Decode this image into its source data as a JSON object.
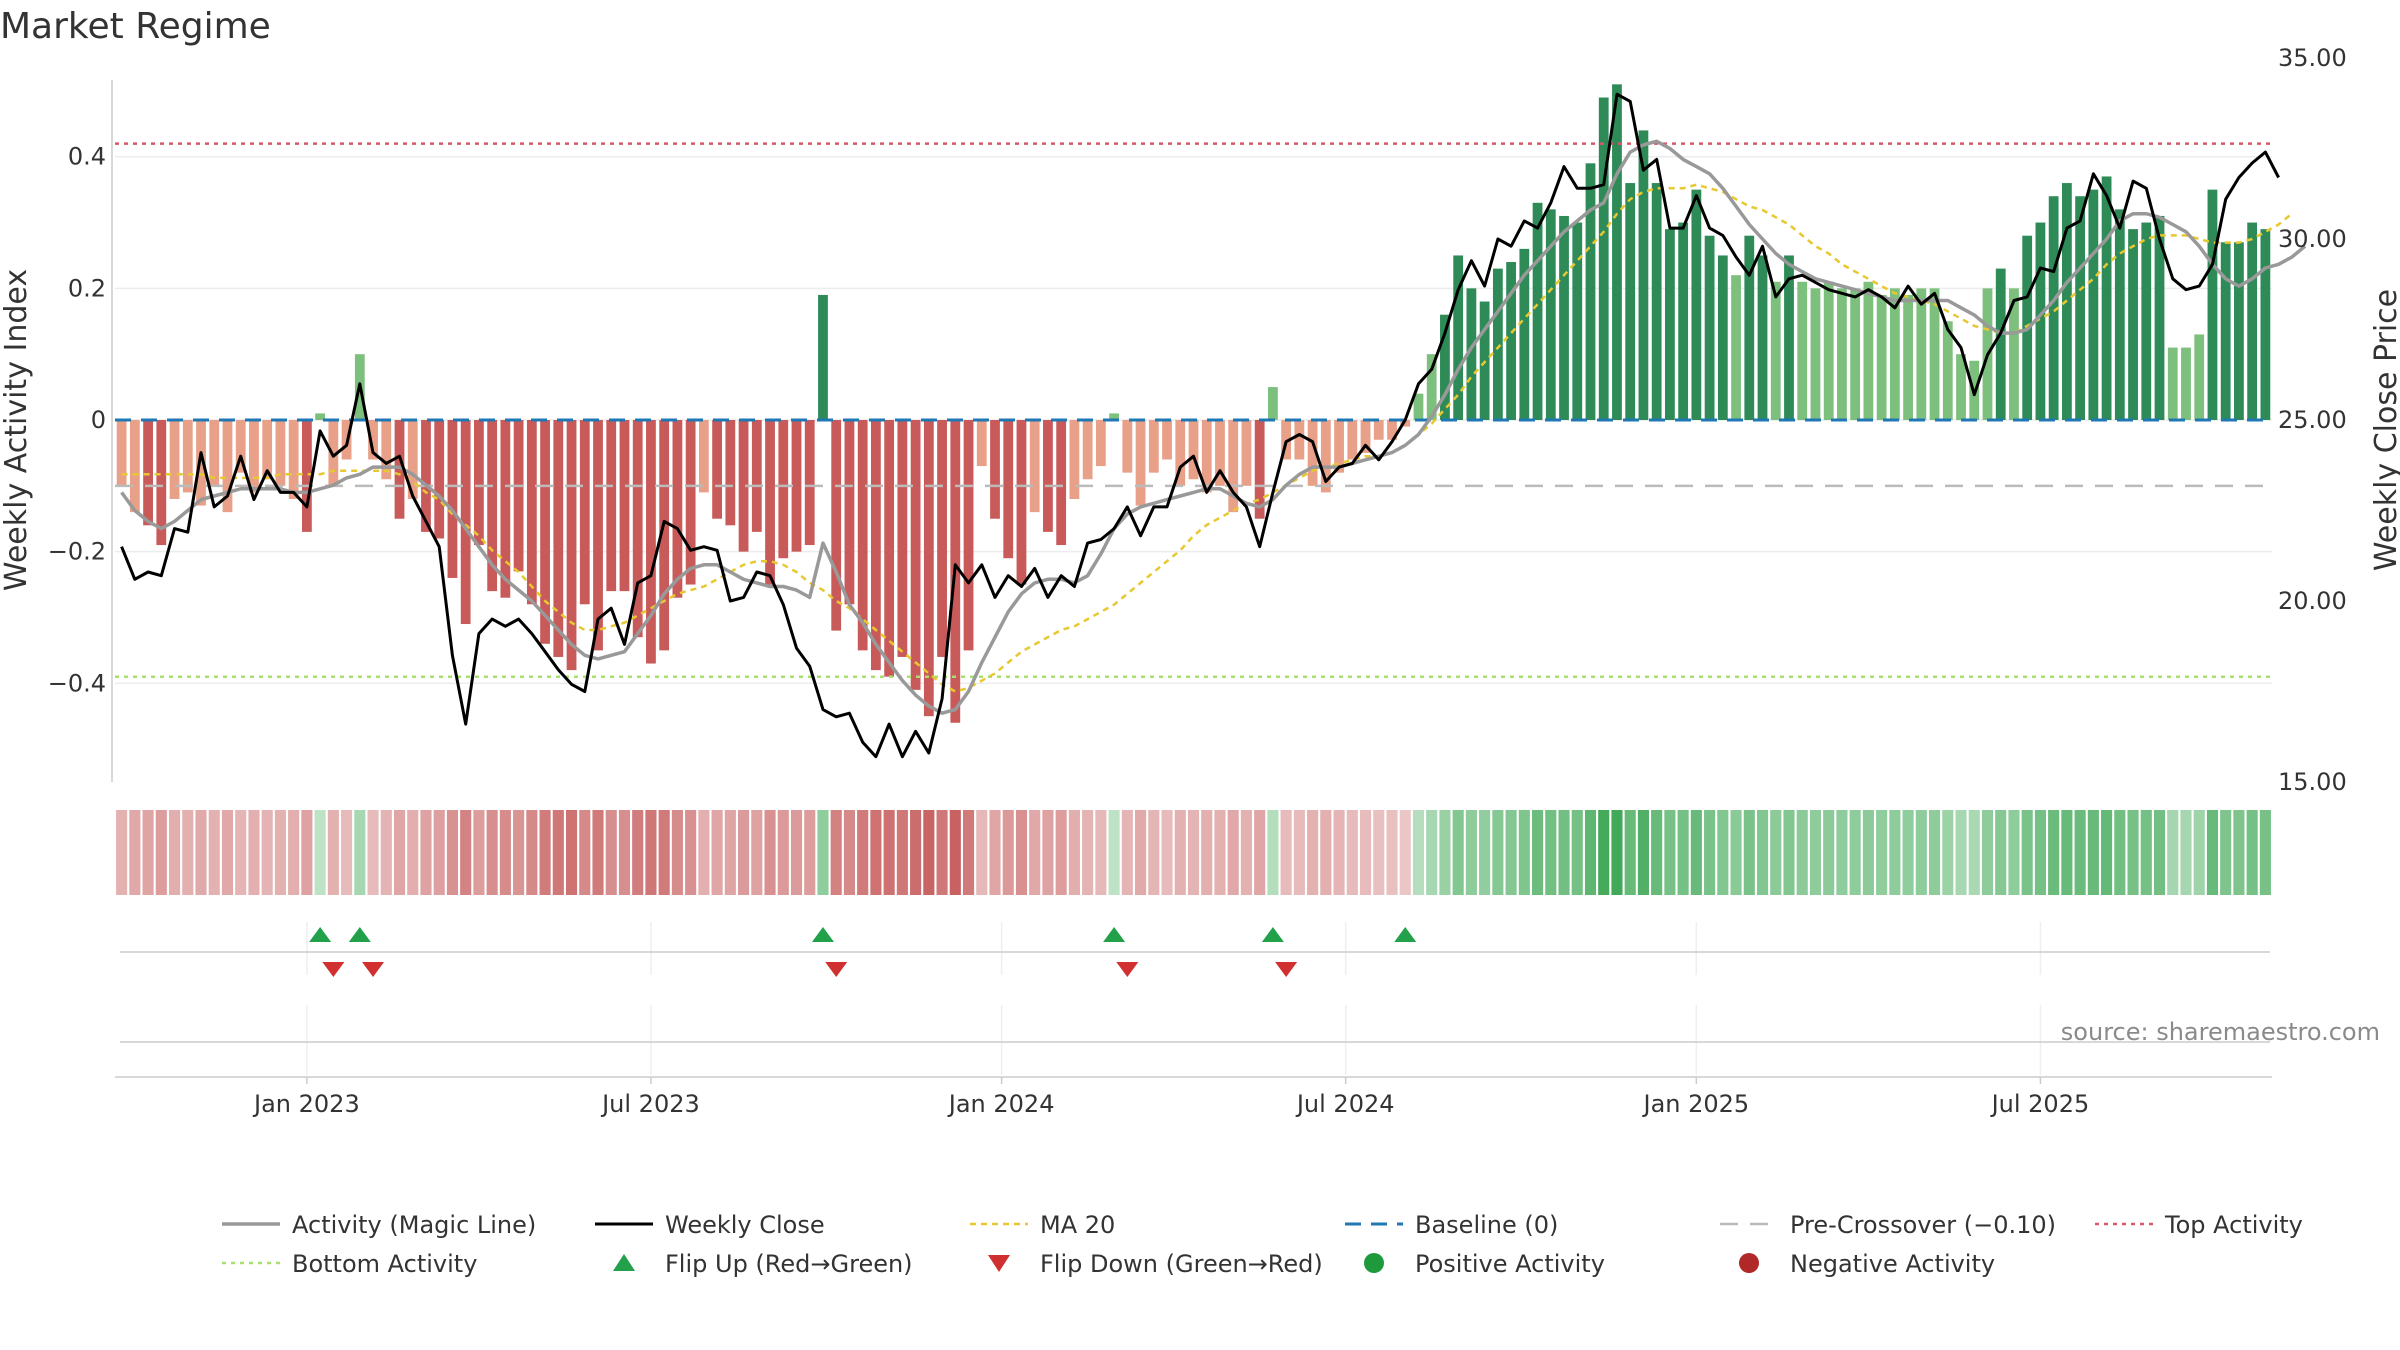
{
  "chart_data": {
    "type": "bar",
    "title": "Market Regime",
    "source": "source: sharemaestro.com",
    "ylabel_left": "Weekly Activity Index",
    "ylabel_right": "Weekly Close Price",
    "ylim_left": [
      -0.55,
      0.55
    ],
    "ylim_right": [
      15.0,
      35.0
    ],
    "yticks_left": [
      {
        "v": 0.4,
        "label": "0.4"
      },
      {
        "v": 0.2,
        "label": "0.2"
      },
      {
        "v": 0,
        "label": "0"
      },
      {
        "v": -0.2,
        "label": "−0.2"
      },
      {
        "v": -0.4,
        "label": "−0.4"
      }
    ],
    "yticks_right": [
      {
        "v": 35,
        "label": "35.00"
      },
      {
        "v": 30,
        "label": "30.00"
      },
      {
        "v": 25,
        "label": "25.00"
      },
      {
        "v": 20,
        "label": "20.00"
      },
      {
        "v": 15,
        "label": "15.00"
      }
    ],
    "xticks": [
      {
        "week": 14.5,
        "label": "Jan 2023"
      },
      {
        "week": 40.5,
        "label": "Jul 2023"
      },
      {
        "week": 67,
        "label": "Jan 2024"
      },
      {
        "week": 93,
        "label": "Jul 2024"
      },
      {
        "week": 119.5,
        "label": "Jan 2025"
      },
      {
        "week": 145.5,
        "label": "Jul 2025"
      }
    ],
    "lines": {
      "baseline": 0,
      "pre_crossover": -0.1,
      "top_activity": 0.42,
      "bottom_activity": -0.39
    },
    "activity_bars": [
      -0.1,
      -0.14,
      -0.16,
      -0.19,
      -0.12,
      -0.11,
      -0.13,
      -0.1,
      -0.14,
      -0.08,
      -0.11,
      -0.09,
      -0.1,
      -0.12,
      -0.17,
      0.01,
      -0.1,
      -0.06,
      0.1,
      -0.06,
      -0.09,
      -0.15,
      -0.12,
      -0.17,
      -0.18,
      -0.24,
      -0.31,
      -0.19,
      -0.26,
      -0.27,
      -0.23,
      -0.28,
      -0.34,
      -0.36,
      -0.38,
      -0.28,
      -0.35,
      -0.26,
      -0.26,
      -0.33,
      -0.37,
      -0.35,
      -0.27,
      -0.25,
      -0.11,
      -0.15,
      -0.16,
      -0.2,
      -0.17,
      -0.25,
      -0.21,
      -0.2,
      -0.19,
      0.19,
      -0.32,
      -0.28,
      -0.35,
      -0.38,
      -0.39,
      -0.36,
      -0.41,
      -0.45,
      -0.36,
      -0.46,
      -0.35,
      -0.07,
      -0.15,
      -0.21,
      -0.25,
      -0.14,
      -0.17,
      -0.19,
      -0.12,
      -0.09,
      -0.07,
      0.01,
      -0.08,
      -0.13,
      -0.08,
      -0.06,
      -0.1,
      -0.09,
      -0.11,
      -0.1,
      -0.14,
      -0.1,
      -0.15,
      0.05,
      -0.06,
      -0.06,
      -0.1,
      -0.11,
      -0.08,
      -0.06,
      -0.05,
      -0.03,
      -0.03,
      -0.01,
      0.04,
      0.1,
      0.16,
      0.25,
      0.2,
      0.18,
      0.23,
      0.24,
      0.26,
      0.33,
      0.32,
      0.31,
      0.3,
      0.39,
      0.49,
      0.51,
      0.36,
      0.44,
      0.36,
      0.29,
      0.3,
      0.35,
      0.28,
      0.25,
      0.22,
      0.28,
      0.25,
      0.21,
      0.25,
      0.21,
      0.2,
      0.21,
      0.2,
      0.2,
      0.21,
      0.19,
      0.2,
      0.19,
      0.2,
      0.2,
      0.15,
      0.1,
      0.09,
      0.2,
      0.23,
      0.2,
      0.28,
      0.3,
      0.34,
      0.36,
      0.34,
      0.35,
      0.37,
      0.32,
      0.29,
      0.3,
      0.31,
      0.11,
      0.11,
      0.13,
      0.35,
      0.27,
      0.27,
      0.3,
      0.29
    ],
    "weekly_close": [
      21.5,
      20.6,
      20.8,
      20.7,
      22.0,
      21.9,
      24.1,
      22.6,
      22.9,
      24.0,
      22.8,
      23.6,
      23.0,
      23.0,
      22.6,
      24.7,
      24.0,
      24.3,
      26.0,
      24.1,
      23.8,
      24.0,
      22.9,
      22.2,
      21.5,
      18.5,
      16.6,
      19.1,
      19.5,
      19.3,
      19.5,
      19.1,
      18.6,
      18.1,
      17.7,
      17.5,
      19.5,
      19.8,
      18.8,
      20.5,
      20.7,
      22.2,
      22.0,
      21.4,
      21.5,
      21.4,
      20.0,
      20.1,
      20.8,
      20.7,
      19.9,
      18.7,
      18.2,
      17.0,
      16.8,
      16.9,
      16.1,
      15.7,
      16.6,
      15.7,
      16.4,
      15.8,
      17.3,
      21.0,
      20.5,
      21.0,
      20.1,
      20.7,
      20.4,
      20.9,
      20.1,
      20.7,
      20.4,
      21.6,
      21.7,
      22.0,
      22.6,
      21.8,
      22.6,
      22.6,
      23.7,
      24.0,
      23.0,
      23.6,
      23.0,
      22.6,
      21.5,
      23.0,
      24.4,
      24.6,
      24.4,
      23.3,
      23.7,
      23.8,
      24.3,
      23.9,
      24.4,
      25.0,
      26.0,
      26.4,
      27.4,
      28.6,
      29.4,
      28.7,
      30.0,
      29.8,
      30.5,
      30.3,
      31.0,
      32.0,
      31.4,
      31.4,
      31.5,
      34.0,
      33.8,
      31.9,
      32.2,
      30.3,
      30.3,
      31.2,
      30.3,
      30.1,
      29.5,
      29.0,
      29.8,
      28.4,
      28.9,
      29.0,
      28.8,
      28.6,
      28.5,
      28.4,
      28.6,
      28.4,
      28.1,
      28.7,
      28.2,
      28.5,
      27.5,
      27.0,
      25.7,
      26.8,
      27.4,
      28.3,
      28.4,
      29.2,
      29.1,
      30.3,
      30.5,
      31.8,
      31.2,
      30.3,
      31.6,
      31.4,
      30.0,
      28.9,
      28.6,
      28.7,
      29.3,
      31.1,
      31.7,
      32.1,
      32.4,
      31.7
    ],
    "magic_line": [
      23.0,
      22.5,
      22.2,
      22.0,
      22.2,
      22.5,
      22.8,
      22.9,
      23.0,
      23.1,
      23.1,
      23.1,
      23.1,
      23.0,
      23.0,
      23.1,
      23.2,
      23.4,
      23.5,
      23.7,
      23.7,
      23.7,
      23.5,
      23.2,
      22.9,
      22.5,
      22.0,
      21.5,
      21.0,
      20.6,
      20.3,
      20.0,
      19.6,
      19.2,
      18.8,
      18.5,
      18.4,
      18.5,
      18.6,
      19.1,
      19.6,
      20.2,
      20.6,
      20.9,
      21.0,
      21.0,
      20.8,
      20.6,
      20.5,
      20.4,
      20.4,
      20.3,
      20.1,
      21.6,
      20.8,
      19.9,
      19.4,
      18.8,
      18.3,
      17.8,
      17.4,
      17.1,
      16.9,
      17.0,
      17.5,
      18.3,
      19.0,
      19.7,
      20.2,
      20.5,
      20.6,
      20.6,
      20.5,
      20.7,
      21.3,
      22.0,
      22.4,
      22.6,
      22.7,
      22.8,
      22.9,
      23.0,
      23.1,
      23.1,
      22.9,
      22.7,
      22.6,
      22.8,
      23.2,
      23.5,
      23.7,
      23.7,
      23.7,
      23.8,
      23.9,
      24.0,
      24.1,
      24.3,
      24.6,
      25.1,
      25.7,
      26.4,
      27.0,
      27.5,
      28.0,
      28.5,
      29.0,
      29.4,
      29.8,
      30.2,
      30.5,
      30.8,
      31.0,
      31.8,
      32.4,
      32.6,
      32.7,
      32.5,
      32.2,
      32.0,
      31.8,
      31.4,
      30.9,
      30.4,
      30.0,
      29.6,
      29.3,
      29.1,
      28.9,
      28.8,
      28.7,
      28.6,
      28.5,
      28.4,
      28.3,
      28.3,
      28.3,
      28.3,
      28.3,
      28.1,
      27.9,
      27.6,
      27.4,
      27.4,
      27.5,
      27.9,
      28.3,
      28.8,
      29.2,
      29.6,
      30.0,
      30.5,
      30.7,
      30.7,
      30.6,
      30.4,
      30.2,
      29.8,
      29.3,
      28.9,
      28.7,
      28.9,
      29.2,
      29.3,
      29.5,
      29.8
    ],
    "ma20": [
      23.5,
      23.5,
      23.5,
      23.5,
      23.5,
      23.5,
      23.5,
      23.4,
      23.4,
      23.4,
      23.4,
      23.4,
      23.5,
      23.5,
      23.5,
      23.5,
      23.6,
      23.6,
      23.6,
      23.6,
      23.6,
      23.5,
      23.3,
      23.0,
      22.8,
      22.4,
      22.1,
      21.8,
      21.4,
      21.1,
      20.8,
      20.4,
      20.0,
      19.7,
      19.4,
      19.2,
      19.2,
      19.3,
      19.4,
      19.6,
      19.8,
      20.0,
      20.2,
      20.3,
      20.4,
      20.6,
      20.8,
      21.0,
      21.1,
      21.1,
      21.0,
      20.8,
      20.5,
      20.3,
      20.0,
      19.8,
      19.5,
      19.2,
      18.9,
      18.6,
      18.3,
      18.0,
      17.7,
      17.5,
      17.6,
      17.8,
      18.0,
      18.3,
      18.6,
      18.8,
      19.0,
      19.2,
      19.3,
      19.5,
      19.7,
      19.9,
      20.2,
      20.5,
      20.8,
      21.1,
      21.4,
      21.8,
      22.1,
      22.3,
      22.5,
      22.7,
      22.8,
      23.0,
      23.2,
      23.4,
      23.6,
      23.7,
      23.8,
      23.9,
      24.0,
      24.0,
      24.1,
      24.3,
      24.6,
      24.9,
      25.3,
      25.7,
      26.2,
      26.6,
      27.0,
      27.4,
      27.8,
      28.2,
      28.6,
      29.0,
      29.4,
      29.8,
      30.2,
      30.7,
      31.1,
      31.3,
      31.4,
      31.4,
      31.4,
      31.5,
      31.4,
      31.3,
      31.1,
      30.9,
      30.8,
      30.6,
      30.4,
      30.1,
      29.8,
      29.6,
      29.3,
      29.1,
      28.9,
      28.7,
      28.5,
      28.4,
      28.3,
      28.2,
      28.0,
      27.8,
      27.6,
      27.5,
      27.4,
      27.4,
      27.6,
      27.8,
      28.0,
      28.3,
      28.6,
      28.9,
      29.3,
      29.6,
      29.8,
      30.0,
      30.1,
      30.1,
      30.1,
      30.0,
      29.9,
      29.9,
      29.9,
      30.0,
      30.2,
      30.4,
      30.7
    ],
    "regime_strip": [
      -0.1,
      -0.14,
      -0.16,
      -0.19,
      -0.12,
      -0.11,
      -0.13,
      -0.1,
      -0.14,
      -0.08,
      -0.11,
      -0.09,
      -0.1,
      -0.12,
      -0.17,
      0.01,
      -0.1,
      -0.06,
      0.1,
      -0.06,
      -0.09,
      -0.15,
      -0.12,
      -0.17,
      -0.18,
      -0.24,
      -0.31,
      -0.19,
      -0.26,
      -0.27,
      -0.23,
      -0.28,
      -0.34,
      -0.36,
      -0.38,
      -0.28,
      -0.35,
      -0.26,
      -0.26,
      -0.33,
      -0.37,
      -0.35,
      -0.27,
      -0.25,
      -0.11,
      -0.15,
      -0.16,
      -0.2,
      -0.17,
      -0.25,
      -0.21,
      -0.2,
      -0.19,
      0.19,
      -0.32,
      -0.28,
      -0.35,
      -0.38,
      -0.39,
      -0.36,
      -0.41,
      -0.45,
      -0.36,
      -0.46,
      -0.35,
      -0.07,
      -0.15,
      -0.21,
      -0.25,
      -0.14,
      -0.17,
      -0.19,
      -0.12,
      -0.09,
      -0.07,
      0.01,
      -0.08,
      -0.13,
      -0.08,
      -0.06,
      -0.1,
      -0.09,
      -0.11,
      -0.1,
      -0.14,
      -0.1,
      -0.15,
      0.05,
      -0.06,
      -0.06,
      -0.1,
      -0.11,
      -0.08,
      -0.06,
      -0.05,
      -0.03,
      -0.03,
      -0.01,
      0.04,
      0.1,
      0.16,
      0.25,
      0.2,
      0.18,
      0.23,
      0.24,
      0.26,
      0.33,
      0.32,
      0.31,
      0.3,
      0.39,
      0.49,
      0.51,
      0.36,
      0.44,
      0.36,
      0.29,
      0.3,
      0.35,
      0.28,
      0.25,
      0.22,
      0.28,
      0.25,
      0.21,
      0.25,
      0.21,
      0.2,
      0.21,
      0.2,
      0.2,
      0.21,
      0.19,
      0.2,
      0.19,
      0.2,
      0.2,
      0.15,
      0.1,
      0.09,
      0.2,
      0.23,
      0.2,
      0.28,
      0.3,
      0.34,
      0.36,
      0.34,
      0.35,
      0.37,
      0.32,
      0.29,
      0.3,
      0.31,
      0.11,
      0.11,
      0.13,
      0.35,
      0.27,
      0.27,
      0.3,
      0.29
    ],
    "flips_up_weeks": [
      15,
      18,
      53,
      75,
      87,
      97
    ],
    "flips_down_weeks": [
      16,
      19,
      54,
      76,
      88
    ],
    "colors": {
      "pos_dark": "#2e8b57",
      "pos_light": "#7dbf7d",
      "neg_dark": "#c85a5a",
      "neg_light": "#e8a088",
      "close": "#000000",
      "magic": "#999999",
      "ma20": "#e8c830",
      "baseline": "#1f77b4",
      "precross": "#bbbbbb",
      "top": "#d45a6a",
      "bottom": "#a8e070",
      "flip_up": "#22a04a",
      "flip_down": "#d03030"
    },
    "legend": [
      {
        "key": "magic",
        "label": "Activity (Magic Line)"
      },
      {
        "key": "close",
        "label": "Weekly Close"
      },
      {
        "key": "ma20",
        "label": "MA 20"
      },
      {
        "key": "baseline",
        "label": "Baseline (0)"
      },
      {
        "key": "precross",
        "label": "Pre-Crossover (−0.10)"
      },
      {
        "key": "top",
        "label": "Top Activity"
      },
      {
        "key": "bottom",
        "label": "Bottom Activity"
      },
      {
        "key": "flipup",
        "label": "Flip Up (Red→Green)"
      },
      {
        "key": "flipdown",
        "label": "Flip Down (Green→Red)"
      },
      {
        "key": "posact",
        "label": "Positive Activity"
      },
      {
        "key": "negact",
        "label": "Negative Activity"
      }
    ]
  }
}
